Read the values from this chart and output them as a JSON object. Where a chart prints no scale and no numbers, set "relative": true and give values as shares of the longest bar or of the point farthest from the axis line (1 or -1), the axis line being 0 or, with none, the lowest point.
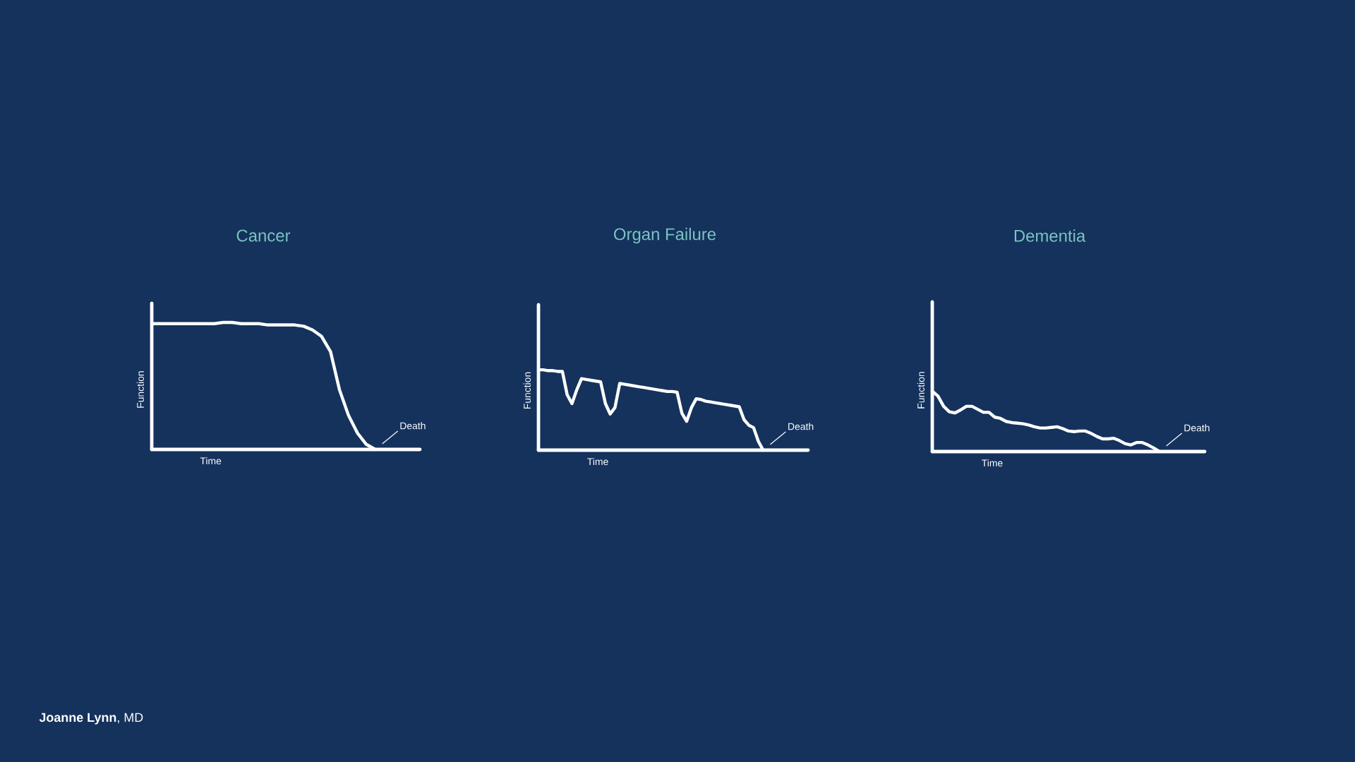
{
  "chart_data": [
    {
      "type": "line",
      "title": "Cancer",
      "xlabel": "Time",
      "ylabel": "Function",
      "relative": true,
      "color": "#ffffff",
      "categories": [
        null,
        null,
        null,
        null,
        null,
        null,
        null,
        null,
        null,
        null,
        null,
        null,
        null,
        null,
        null,
        null,
        null,
        null,
        null,
        null,
        null,
        null,
        null,
        null,
        null,
        null
      ],
      "values": [
        0.99,
        0.99,
        0.99,
        0.99,
        0.99,
        0.99,
        0.99,
        0.99,
        1,
        1,
        0.99,
        0.99,
        0.99,
        0.98,
        0.98,
        0.98,
        0.98,
        0.97,
        0.94,
        0.89,
        0.77,
        0.47,
        0.27,
        0.13,
        0.04,
        0
      ],
      "annotations": [
        "Death",
        "**Joanne Lynn**, MD"
      ]
    },
    {
      "type": "line",
      "title": "Organ Failure",
      "xlabel": "Time",
      "ylabel": "Function",
      "relative": true,
      "color": "#ffffff",
      "categories": [
        null,
        null,
        null,
        null,
        null,
        null,
        null,
        null,
        null,
        null,
        null,
        null,
        null,
        null,
        null,
        null,
        null,
        null,
        null,
        null,
        null,
        null,
        null,
        null,
        null,
        null,
        null,
        null,
        null,
        null,
        null,
        null,
        null,
        null,
        null,
        null,
        null,
        null,
        null,
        null,
        null,
        null,
        null,
        null,
        null,
        null,
        null,
        null
      ],
      "values": [
        1,
        1,
        0.99,
        0.99,
        0.98,
        0.98,
        0.69,
        0.58,
        0.75,
        0.89,
        0.88,
        0.87,
        0.86,
        0.85,
        0.58,
        0.45,
        0.53,
        0.83,
        0.82,
        0.81,
        0.8,
        0.79,
        0.78,
        0.77,
        0.76,
        0.75,
        0.74,
        0.73,
        0.73,
        0.72,
        0.46,
        0.36,
        0.53,
        0.64,
        0.63,
        0.61,
        0.6,
        0.59,
        0.58,
        0.57,
        0.56,
        0.55,
        0.54,
        0.38,
        0.31,
        0.28,
        0.11,
        0
      ],
      "annotations": [
        "Death"
      ]
    },
    {
      "type": "line",
      "title": "Dementia",
      "xlabel": "Time",
      "ylabel": "Function",
      "relative": true,
      "color": "#ffffff",
      "categories": [
        null,
        null,
        null,
        null,
        null,
        null,
        null,
        null,
        null,
        null,
        null,
        null,
        null,
        null,
        null,
        null,
        null,
        null,
        null,
        null,
        null,
        null,
        null,
        null,
        null,
        null,
        null,
        null,
        null,
        null,
        null,
        null,
        null,
        null,
        null,
        null,
        null,
        null,
        null,
        null,
        null
      ],
      "values": [
        1,
        0.92,
        0.75,
        0.66,
        0.64,
        0.69,
        0.75,
        0.75,
        0.7,
        0.65,
        0.65,
        0.57,
        0.55,
        0.5,
        0.48,
        0.47,
        0.46,
        0.44,
        0.41,
        0.39,
        0.39,
        0.4,
        0.41,
        0.38,
        0.34,
        0.33,
        0.34,
        0.34,
        0.3,
        0.25,
        0.21,
        0.21,
        0.22,
        0.18,
        0.13,
        0.11,
        0.15,
        0.15,
        0.11,
        0.06,
        0
      ],
      "annotations": [
        "Death"
      ]
    }
  ]
}
